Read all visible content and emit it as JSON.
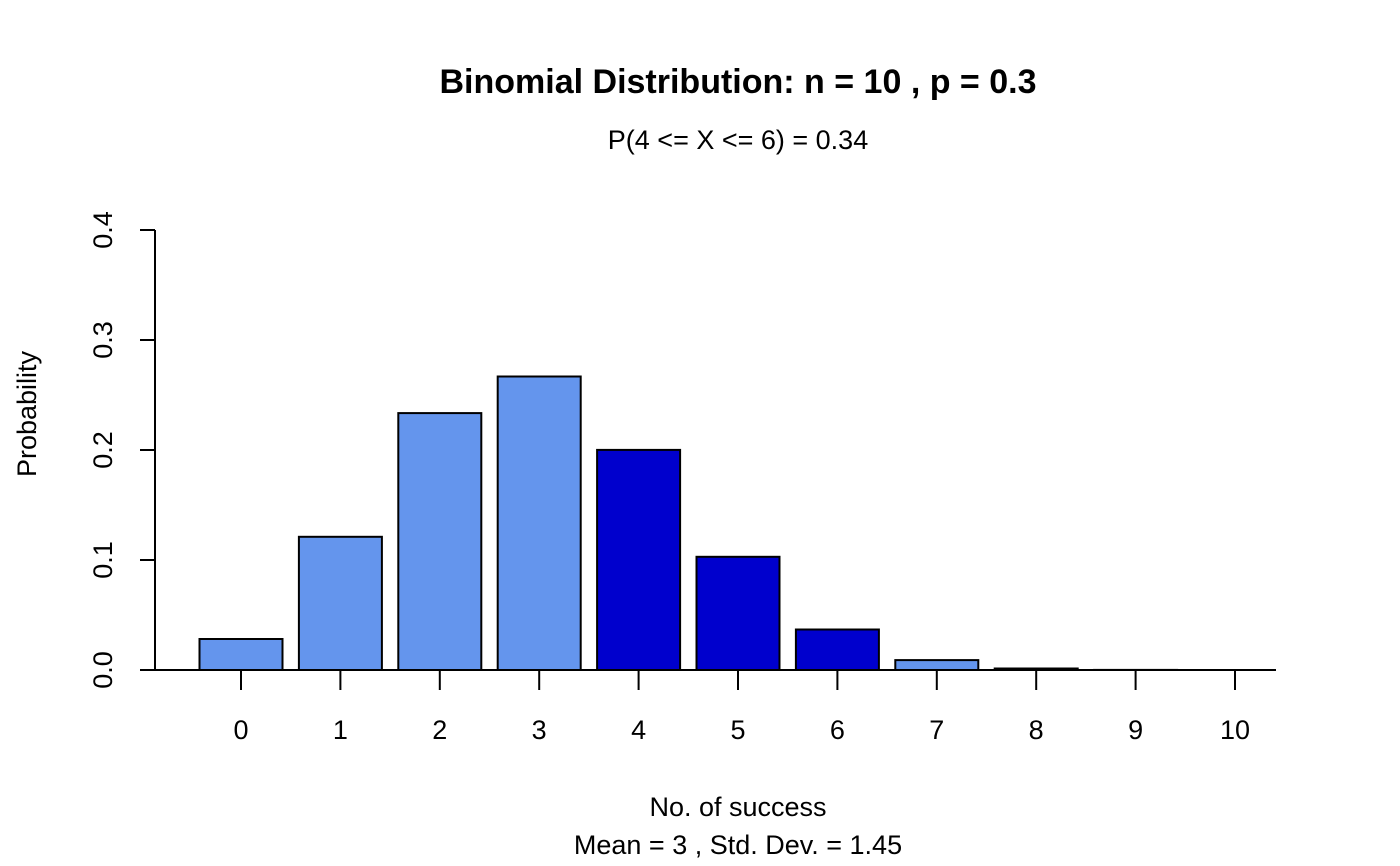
{
  "chart_data": {
    "type": "bar",
    "title": "Binomial Distribution: n = 10 , p = 0.3",
    "subtitle": "P(4 <= X <= 6) = 0.34",
    "xlabel": "No. of success",
    "xlabel_sub": "Mean = 3 , Std. Dev. = 1.45",
    "ylabel": "Probability",
    "categories": [
      "0",
      "1",
      "2",
      "3",
      "4",
      "5",
      "6",
      "7",
      "8",
      "9",
      "10"
    ],
    "values": [
      0.0282,
      0.1211,
      0.2335,
      0.2668,
      0.2001,
      0.1029,
      0.0368,
      0.009,
      0.0014,
      0.0001,
      0.0
    ],
    "highlighted": [
      false,
      false,
      false,
      false,
      true,
      true,
      true,
      false,
      false,
      false,
      false
    ],
    "ylim": [
      0,
      0.4
    ],
    "yticks": [
      "0.0",
      "0.1",
      "0.2",
      "0.3",
      "0.4"
    ],
    "colors": {
      "base": "#6495ed",
      "highlight": "#0000cd"
    },
    "grid": false
  }
}
